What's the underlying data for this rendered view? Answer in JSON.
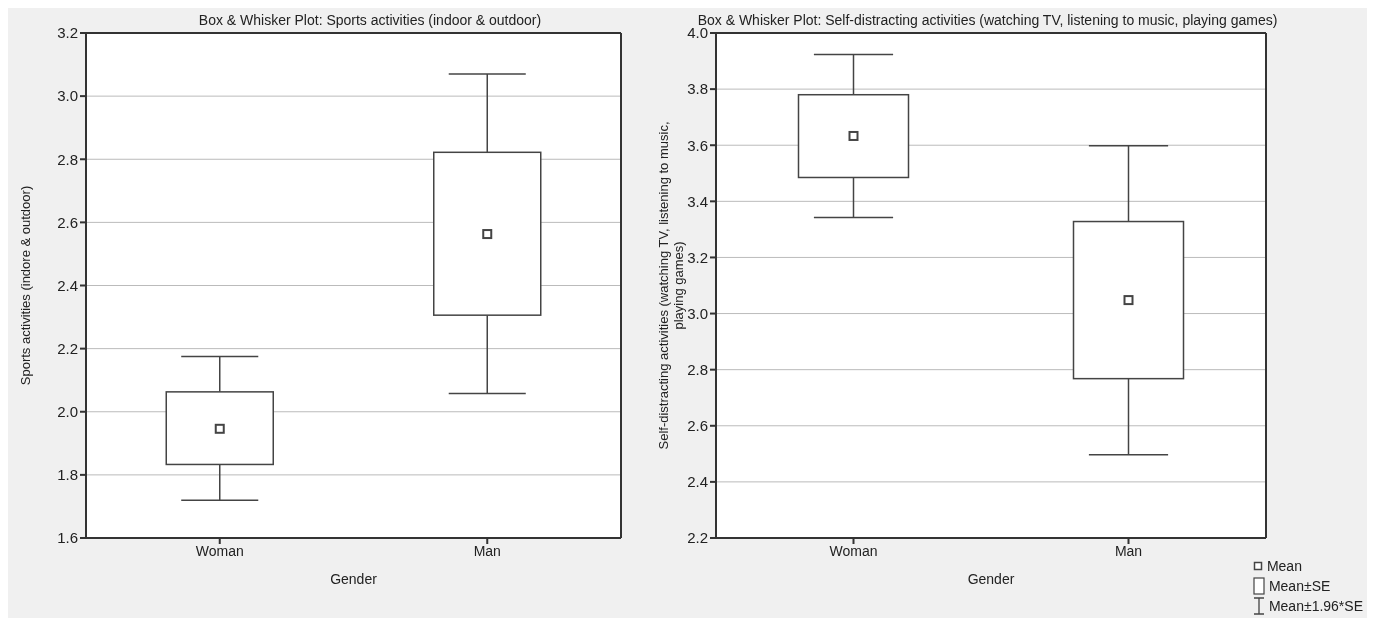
{
  "chart_data": [
    {
      "type": "box",
      "title": "Box & Whisker Plot: Sports activities (indoor & outdoor)",
      "xlabel": "Gender",
      "ylabel": "Sports activities (indore & outdoor)",
      "categories": [
        "Woman",
        "Man"
      ],
      "color": "#444444",
      "boxes": [
        {
          "low": 1.72,
          "q1": 1.833,
          "median": 1.946,
          "q3": 2.063,
          "high": 2.175
        },
        {
          "low": 2.058,
          "q1": 2.306,
          "median": 2.563,
          "q3": 2.822,
          "high": 3.07
        }
      ],
      "ylim": [
        1.6,
        3.2
      ],
      "yticks": [
        {
          "value": 1.6,
          "label": "1.6"
        },
        {
          "value": 1.8,
          "label": "1.8"
        },
        {
          "value": 2.0,
          "label": "2.0"
        },
        {
          "value": 2.2,
          "label": "2.2"
        },
        {
          "value": 2.4,
          "label": "2.4"
        },
        {
          "value": 2.6,
          "label": "2.6"
        },
        {
          "value": 2.8,
          "label": "2.8"
        },
        {
          "value": 3.0,
          "label": "3.0"
        },
        {
          "value": 3.2,
          "label": "3.2"
        }
      ],
      "grid": "y"
    },
    {
      "type": "box",
      "title": "Box & Whisker Plot: Self-distracting activities (watching TV, listening to music, playing games)",
      "xlabel": "Gender",
      "ylabel": "Self-distracting activities (watching TV, listening to music, playing games)",
      "categories": [
        "Woman",
        "Man"
      ],
      "color": "#444444",
      "boxes": [
        {
          "low": 3.342,
          "q1": 3.485,
          "median": 3.633,
          "q3": 3.78,
          "high": 3.923
        },
        {
          "low": 2.497,
          "q1": 2.768,
          "median": 3.048,
          "q3": 3.328,
          "high": 3.598
        }
      ],
      "ylim": [
        2.2,
        4.0
      ],
      "yticks": [
        {
          "value": 2.2,
          "label": "2.2"
        },
        {
          "value": 2.4,
          "label": "2.4"
        },
        {
          "value": 2.6,
          "label": "2.6"
        },
        {
          "value": 2.8,
          "label": "2.8"
        },
        {
          "value": 3.0,
          "label": "3.0"
        },
        {
          "value": 3.2,
          "label": "3.2"
        },
        {
          "value": 3.4,
          "label": "3.4"
        },
        {
          "value": 3.6,
          "label": "3.6"
        },
        {
          "value": 3.8,
          "label": "3.8"
        },
        {
          "value": 4.0,
          "label": "4.0"
        }
      ],
      "grid": "y",
      "annotations": [
        "Mean",
        "Mean±SE",
        "Mean±1.96*SE"
      ]
    }
  ]
}
